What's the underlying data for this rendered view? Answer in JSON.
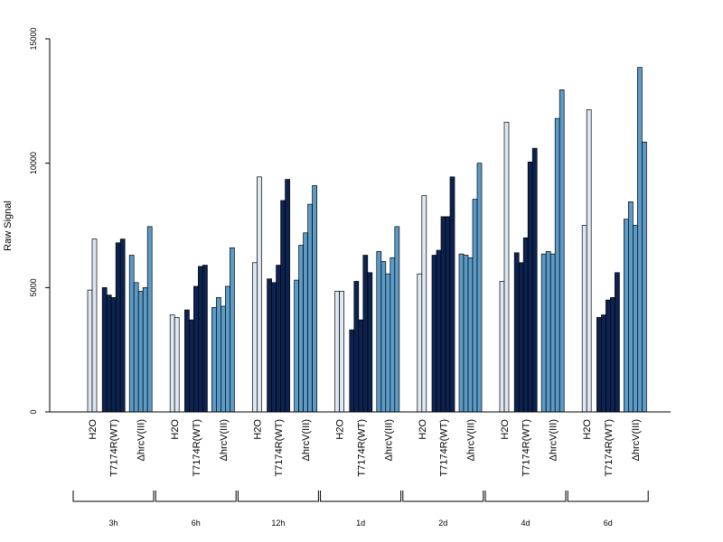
{
  "chart_data": {
    "type": "bar",
    "ylabel": "Raw Signal",
    "ylim": [
      0,
      15000
    ],
    "yticks": [
      "0",
      "5000",
      "10000",
      "15000"
    ],
    "treatments": [
      "H2O",
      "T7174R(WT)",
      "ΔhrcV(III)"
    ],
    "colors": {
      "H2O": "#dde8f3",
      "T7174R(WT)": "#0c2351",
      "ΔhrcV(III)": "#5b9bc8"
    },
    "groups": [
      {
        "label": "3h",
        "values": {
          "H2O": [
            4900,
            6950
          ],
          "T7174R(WT)": [
            5000,
            4700,
            4600,
            6800,
            6950
          ],
          "ΔhrcV(III)": [
            6300,
            5200,
            4850,
            5000,
            7450
          ]
        }
      },
      {
        "label": "6h",
        "values": {
          "H2O": [
            3900,
            3800
          ],
          "T7174R(WT)": [
            4100,
            3700,
            5050,
            5850,
            5900
          ],
          "ΔhrcV(III)": [
            4200,
            4600,
            4250,
            5050,
            6600
          ]
        }
      },
      {
        "label": "12h",
        "values": {
          "H2O": [
            6000,
            9450
          ],
          "T7174R(WT)": [
            5350,
            5200,
            5900,
            8500,
            9350
          ],
          "ΔhrcV(III)": [
            5300,
            6700,
            7200,
            8350,
            9100
          ]
        }
      },
      {
        "label": "1d",
        "values": {
          "H2O": [
            4850,
            4850
          ],
          "T7174R(WT)": [
            3300,
            5250,
            3700,
            6300,
            5600
          ],
          "ΔhrcV(III)": [
            6450,
            6050,
            5550,
            6200,
            7450
          ]
        }
      },
      {
        "label": "2d",
        "values": {
          "H2O": [
            5550,
            8700
          ],
          "T7174R(WT)": [
            6300,
            6500,
            7850,
            7850,
            9450
          ],
          "ΔhrcV(III)": [
            6350,
            6300,
            6200,
            8550,
            10000
          ]
        }
      },
      {
        "label": "4d",
        "values": {
          "H2O": [
            5250,
            11650
          ],
          "T7174R(WT)": [
            6400,
            6000,
            7000,
            10050,
            10600
          ],
          "ΔhrcV(III)": [
            6350,
            6450,
            6350,
            11800,
            12950
          ]
        }
      },
      {
        "label": "6d",
        "values": {
          "H2O": [
            7500,
            12150
          ],
          "T7174R(WT)": [
            3800,
            3900,
            4500,
            4600,
            5600
          ],
          "ΔhrcV(III)": [
            7750,
            8450,
            7500,
            13850,
            10850
          ]
        }
      }
    ]
  }
}
